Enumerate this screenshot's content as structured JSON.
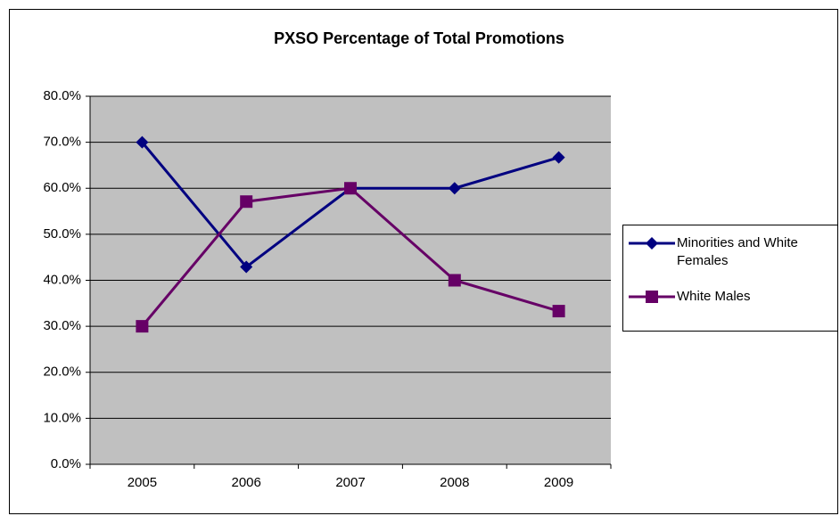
{
  "chart_data": {
    "type": "line",
    "title": "PXSO Percentage of Total Promotions",
    "categories": [
      "2005",
      "2006",
      "2007",
      "2008",
      "2009"
    ],
    "series": [
      {
        "name": "Minorities and White Females",
        "color": "#000080",
        "marker": "diamond",
        "values": [
          70.0,
          42.9,
          60.0,
          60.0,
          66.7
        ]
      },
      {
        "name": "White Males",
        "color": "#660066",
        "marker": "square",
        "values": [
          30.0,
          57.1,
          60.0,
          40.0,
          33.3
        ]
      }
    ],
    "ylim": [
      0,
      80
    ],
    "yticks": [
      {
        "value": 0,
        "label": "0.0%"
      },
      {
        "value": 10,
        "label": "10.0%"
      },
      {
        "value": 20,
        "label": "20.0%"
      },
      {
        "value": 30,
        "label": "30.0%"
      },
      {
        "value": 40,
        "label": "40.0%"
      },
      {
        "value": 50,
        "label": "50.0%"
      },
      {
        "value": 60,
        "label": "60.0%"
      },
      {
        "value": 70,
        "label": "70.0%"
      },
      {
        "value": 80,
        "label": "80.0%"
      }
    ],
    "grid": true,
    "legend": "right"
  }
}
